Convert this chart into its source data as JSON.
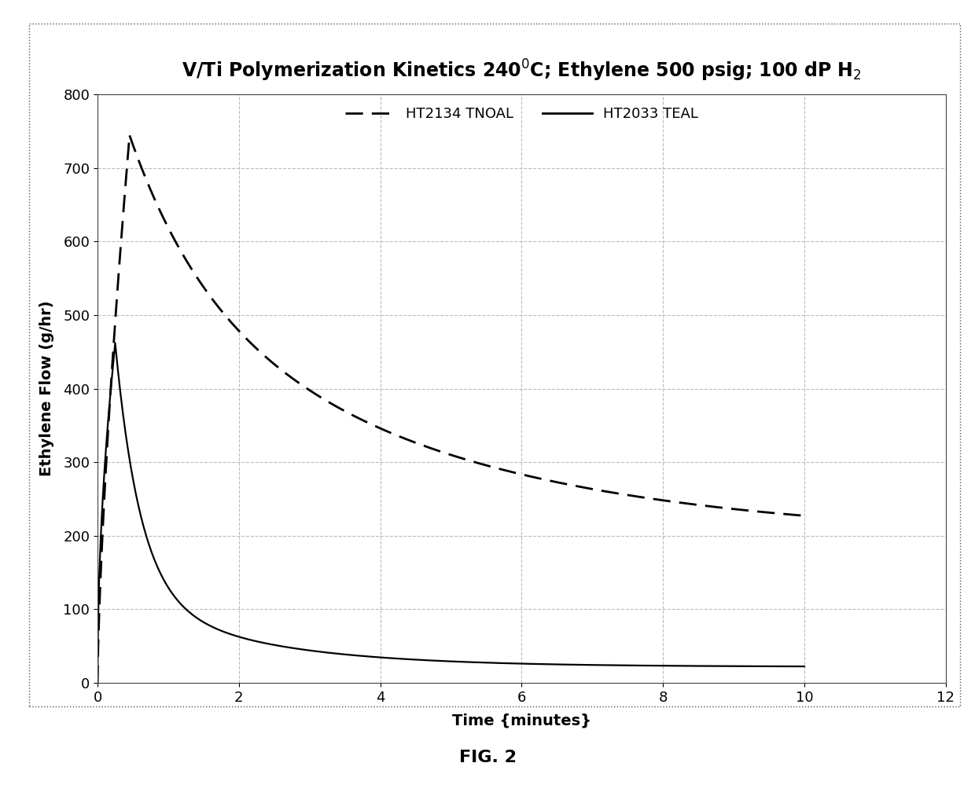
{
  "title": "V/Ti Polymerization Kinetics 240$^{0}$C; Ethylene 500 psig; 100 dP H$_2$",
  "xlabel": "Time {minutes}",
  "ylabel": "Ethylene Flow (g/hr)",
  "xlim": [
    0,
    12
  ],
  "ylim": [
    0,
    800
  ],
  "xticks": [
    0,
    2,
    4,
    6,
    8,
    10,
    12
  ],
  "yticks": [
    0,
    100,
    200,
    300,
    400,
    500,
    600,
    700,
    800
  ],
  "legend_labels": [
    "HT2134 TNOAL",
    "HT2033 TEAL"
  ],
  "line_color": "#000000",
  "background_color": "#ffffff",
  "fig_caption": "FIG. 2",
  "title_fontsize": 17,
  "axis_fontsize": 14,
  "tick_fontsize": 13,
  "legend_fontsize": 13
}
